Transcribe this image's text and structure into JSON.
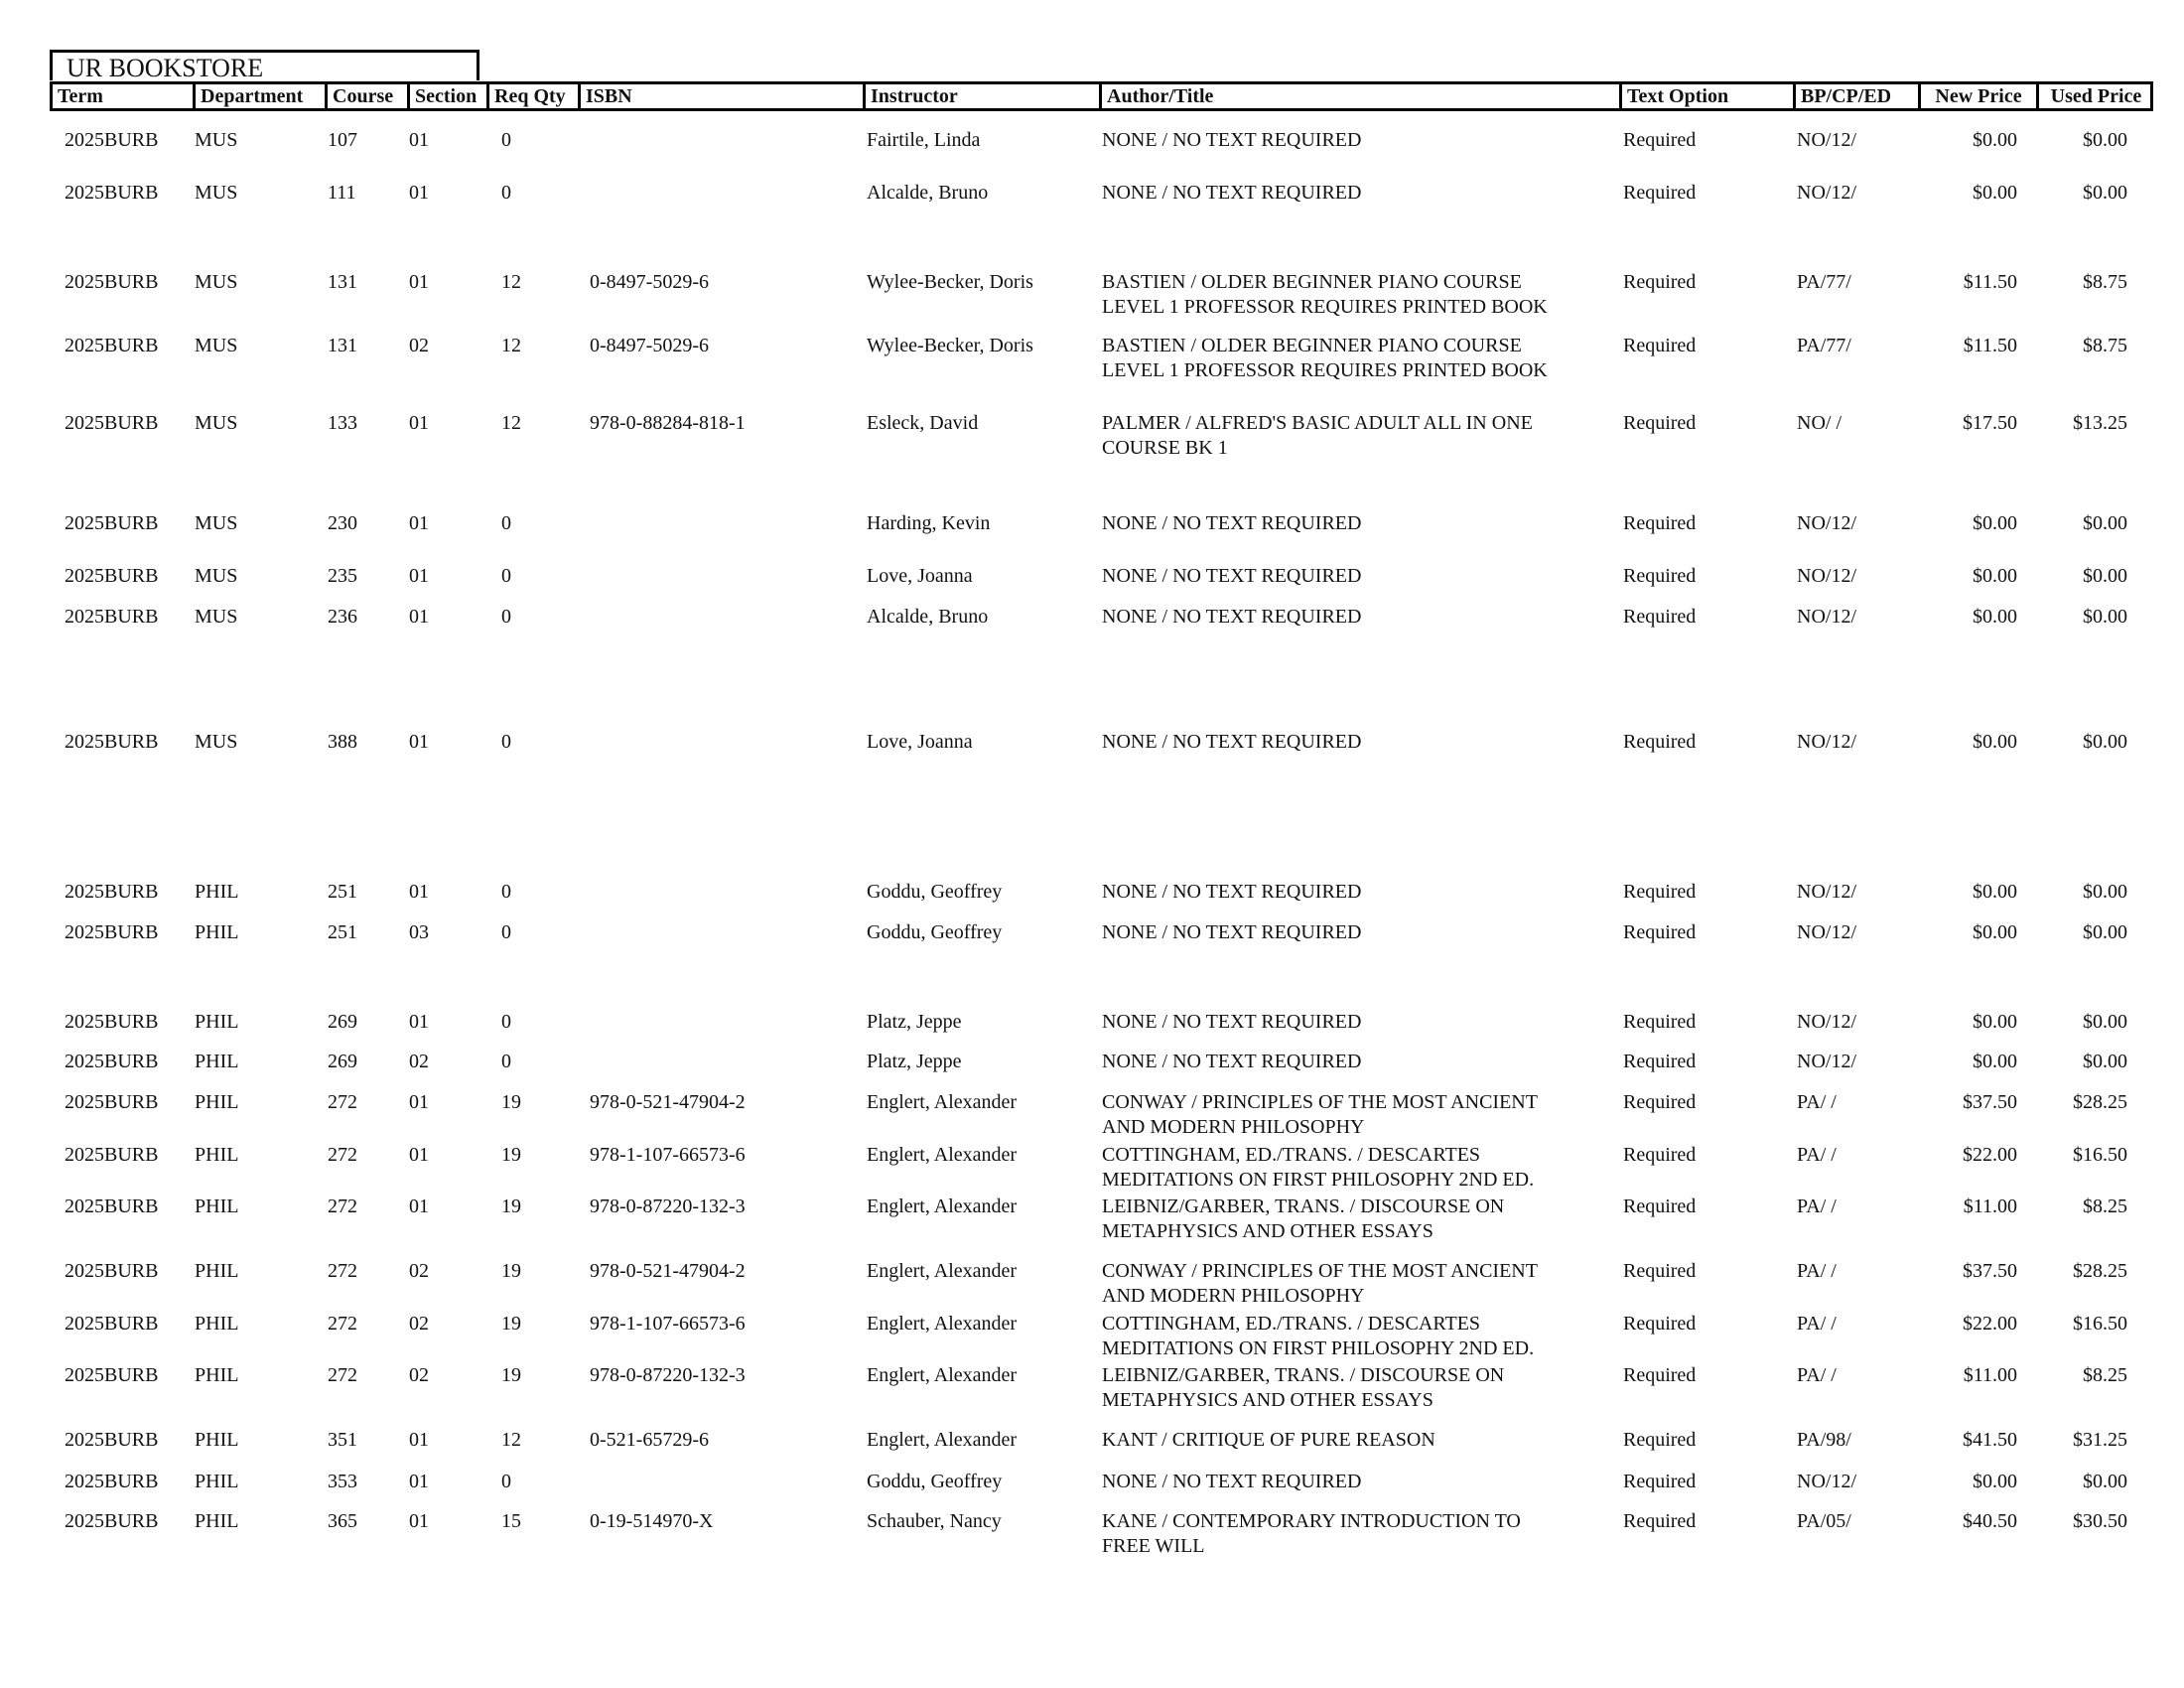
{
  "title": "UR BOOKSTORE",
  "columns": [
    "Term",
    "Department",
    "Course",
    "Section",
    "Req Qty",
    "ISBN",
    "Instructor",
    "Author/Title",
    "Text Option",
    "BP/CP/ED",
    "New Price",
    "Used Price"
  ],
  "rows": [
    {
      "term": "2025BURB",
      "dept": "MUS",
      "course": "107",
      "section": "01",
      "qty": "0",
      "isbn": "",
      "instructor": "Fairtile, Linda",
      "title": [
        "NONE / NO TEXT REQUIRED"
      ],
      "option": "Required",
      "bp": "NO/12/",
      "new": "$0.00",
      "used": "$0.00"
    },
    {
      "term": "2025BURB",
      "dept": "MUS",
      "course": "111",
      "section": "01",
      "qty": "0",
      "isbn": "",
      "instructor": "Alcalde, Bruno",
      "title": [
        "NONE / NO TEXT REQUIRED"
      ],
      "option": "Required",
      "bp": "NO/12/",
      "new": "$0.00",
      "used": "$0.00"
    },
    {
      "term": "2025BURB",
      "dept": "MUS",
      "course": "131",
      "section": "01",
      "qty": "12",
      "isbn": "0-8497-5029-6",
      "instructor": "Wylee-Becker, Doris",
      "title": [
        "BASTIEN / OLDER BEGINNER PIANO COURSE",
        "LEVEL 1 PROFESSOR REQUIRES PRINTED BOOK"
      ],
      "option": "Required",
      "bp": "PA/77/",
      "new": "$11.50",
      "used": "$8.75"
    },
    {
      "term": "2025BURB",
      "dept": "MUS",
      "course": "131",
      "section": "02",
      "qty": "12",
      "isbn": "0-8497-5029-6",
      "instructor": "Wylee-Becker, Doris",
      "title": [
        "BASTIEN / OLDER BEGINNER PIANO COURSE",
        "LEVEL 1 PROFESSOR REQUIRES PRINTED BOOK"
      ],
      "option": "Required",
      "bp": "PA/77/",
      "new": "$11.50",
      "used": "$8.75"
    },
    {
      "term": "2025BURB",
      "dept": "MUS",
      "course": "133",
      "section": "01",
      "qty": "12",
      "isbn": "978-0-88284-818-1",
      "instructor": "Esleck, David",
      "title": [
        "PALMER / ALFRED'S BASIC ADULT ALL IN ONE",
        "COURSE BK 1"
      ],
      "option": "Required",
      "bp": "NO/  /",
      "new": "$17.50",
      "used": "$13.25"
    },
    {
      "term": "2025BURB",
      "dept": "MUS",
      "course": "230",
      "section": "01",
      "qty": "0",
      "isbn": "",
      "instructor": "Harding, Kevin",
      "title": [
        "NONE / NO TEXT REQUIRED"
      ],
      "option": "Required",
      "bp": "NO/12/",
      "new": "$0.00",
      "used": "$0.00"
    },
    {
      "term": "2025BURB",
      "dept": "MUS",
      "course": "235",
      "section": "01",
      "qty": "0",
      "isbn": "",
      "instructor": "Love, Joanna",
      "title": [
        "NONE / NO TEXT REQUIRED"
      ],
      "option": "Required",
      "bp": "NO/12/",
      "new": "$0.00",
      "used": "$0.00"
    },
    {
      "term": "2025BURB",
      "dept": "MUS",
      "course": "236",
      "section": "01",
      "qty": "0",
      "isbn": "",
      "instructor": "Alcalde, Bruno",
      "title": [
        "NONE / NO TEXT REQUIRED"
      ],
      "option": "Required",
      "bp": "NO/12/",
      "new": "$0.00",
      "used": "$0.00"
    },
    {
      "term": "2025BURB",
      "dept": "MUS",
      "course": "388",
      "section": "01",
      "qty": "0",
      "isbn": "",
      "instructor": "Love, Joanna",
      "title": [
        "NONE / NO TEXT REQUIRED"
      ],
      "option": "Required",
      "bp": "NO/12/",
      "new": "$0.00",
      "used": "$0.00"
    },
    {
      "term": "2025BURB",
      "dept": "PHIL",
      "course": "251",
      "section": "01",
      "qty": "0",
      "isbn": "",
      "instructor": "Goddu, Geoffrey",
      "title": [
        "NONE / NO TEXT REQUIRED"
      ],
      "option": "Required",
      "bp": "NO/12/",
      "new": "$0.00",
      "used": "$0.00"
    },
    {
      "term": "2025BURB",
      "dept": "PHIL",
      "course": "251",
      "section": "03",
      "qty": "0",
      "isbn": "",
      "instructor": "Goddu, Geoffrey",
      "title": [
        "NONE / NO TEXT REQUIRED"
      ],
      "option": "Required",
      "bp": "NO/12/",
      "new": "$0.00",
      "used": "$0.00"
    },
    {
      "term": "2025BURB",
      "dept": "PHIL",
      "course": "269",
      "section": "01",
      "qty": "0",
      "isbn": "",
      "instructor": "Platz, Jeppe",
      "title": [
        "NONE / NO TEXT REQUIRED"
      ],
      "option": "Required",
      "bp": "NO/12/",
      "new": "$0.00",
      "used": "$0.00"
    },
    {
      "term": "2025BURB",
      "dept": "PHIL",
      "course": "269",
      "section": "02",
      "qty": "0",
      "isbn": "",
      "instructor": "Platz, Jeppe",
      "title": [
        "NONE / NO TEXT REQUIRED"
      ],
      "option": "Required",
      "bp": "NO/12/",
      "new": "$0.00",
      "used": "$0.00"
    },
    {
      "term": "2025BURB",
      "dept": "PHIL",
      "course": "272",
      "section": "01",
      "qty": "19",
      "isbn": "978-0-521-47904-2",
      "instructor": "Englert, Alexander",
      "title": [
        "CONWAY / PRINCIPLES OF THE MOST ANCIENT",
        "AND MODERN PHILOSOPHY"
      ],
      "option": "Required",
      "bp": "PA/  /",
      "new": "$37.50",
      "used": "$28.25"
    },
    {
      "term": "2025BURB",
      "dept": "PHIL",
      "course": "272",
      "section": "01",
      "qty": "19",
      "isbn": "978-1-107-66573-6",
      "instructor": "Englert, Alexander",
      "title": [
        "COTTINGHAM, ED./TRANS. / DESCARTES",
        "MEDITATIONS ON FIRST PHILOSOPHY 2ND ED."
      ],
      "option": "Required",
      "bp": "PA/  /",
      "new": "$22.00",
      "used": "$16.50"
    },
    {
      "term": "2025BURB",
      "dept": "PHIL",
      "course": "272",
      "section": "01",
      "qty": "19",
      "isbn": "978-0-87220-132-3",
      "instructor": "Englert, Alexander",
      "title": [
        "LEIBNIZ/GARBER, TRANS. / DISCOURSE ON",
        "METAPHYSICS AND OTHER ESSAYS"
      ],
      "option": "Required",
      "bp": "PA/  /",
      "new": "$11.00",
      "used": "$8.25"
    },
    {
      "term": "2025BURB",
      "dept": "PHIL",
      "course": "272",
      "section": "02",
      "qty": "19",
      "isbn": "978-0-521-47904-2",
      "instructor": "Englert, Alexander",
      "title": [
        "CONWAY / PRINCIPLES OF THE MOST ANCIENT",
        "AND MODERN PHILOSOPHY"
      ],
      "option": "Required",
      "bp": "PA/  /",
      "new": "$37.50",
      "used": "$28.25"
    },
    {
      "term": "2025BURB",
      "dept": "PHIL",
      "course": "272",
      "section": "02",
      "qty": "19",
      "isbn": "978-1-107-66573-6",
      "instructor": "Englert, Alexander",
      "title": [
        "COTTINGHAM, ED./TRANS. / DESCARTES",
        "MEDITATIONS ON FIRST PHILOSOPHY 2ND ED."
      ],
      "option": "Required",
      "bp": "PA/  /",
      "new": "$22.00",
      "used": "$16.50"
    },
    {
      "term": "2025BURB",
      "dept": "PHIL",
      "course": "272",
      "section": "02",
      "qty": "19",
      "isbn": "978-0-87220-132-3",
      "instructor": "Englert, Alexander",
      "title": [
        "LEIBNIZ/GARBER, TRANS. / DISCOURSE ON",
        "METAPHYSICS AND OTHER ESSAYS"
      ],
      "option": "Required",
      "bp": "PA/  /",
      "new": "$11.00",
      "used": "$8.25"
    },
    {
      "term": "2025BURB",
      "dept": "PHIL",
      "course": "351",
      "section": "01",
      "qty": "12",
      "isbn": "0-521-65729-6",
      "instructor": "Englert, Alexander",
      "title": [
        "KANT / CRITIQUE OF PURE REASON"
      ],
      "option": "Required",
      "bp": "PA/98/",
      "new": "$41.50",
      "used": "$31.25"
    },
    {
      "term": "2025BURB",
      "dept": "PHIL",
      "course": "353",
      "section": "01",
      "qty": "0",
      "isbn": "",
      "instructor": "Goddu, Geoffrey",
      "title": [
        "NONE / NO TEXT REQUIRED"
      ],
      "option": "Required",
      "bp": "NO/12/",
      "new": "$0.00",
      "used": "$0.00"
    },
    {
      "term": "2025BURB",
      "dept": "PHIL",
      "course": "365",
      "section": "01",
      "qty": "15",
      "isbn": "0-19-514970-X",
      "instructor": "Schauber, Nancy",
      "title": [
        "KANE / CONTEMPORARY INTRODUCTION TO",
        "FREE WILL"
      ],
      "option": "Required",
      "bp": "PA/05/",
      "new": "$40.50",
      "used": "$30.50"
    }
  ]
}
